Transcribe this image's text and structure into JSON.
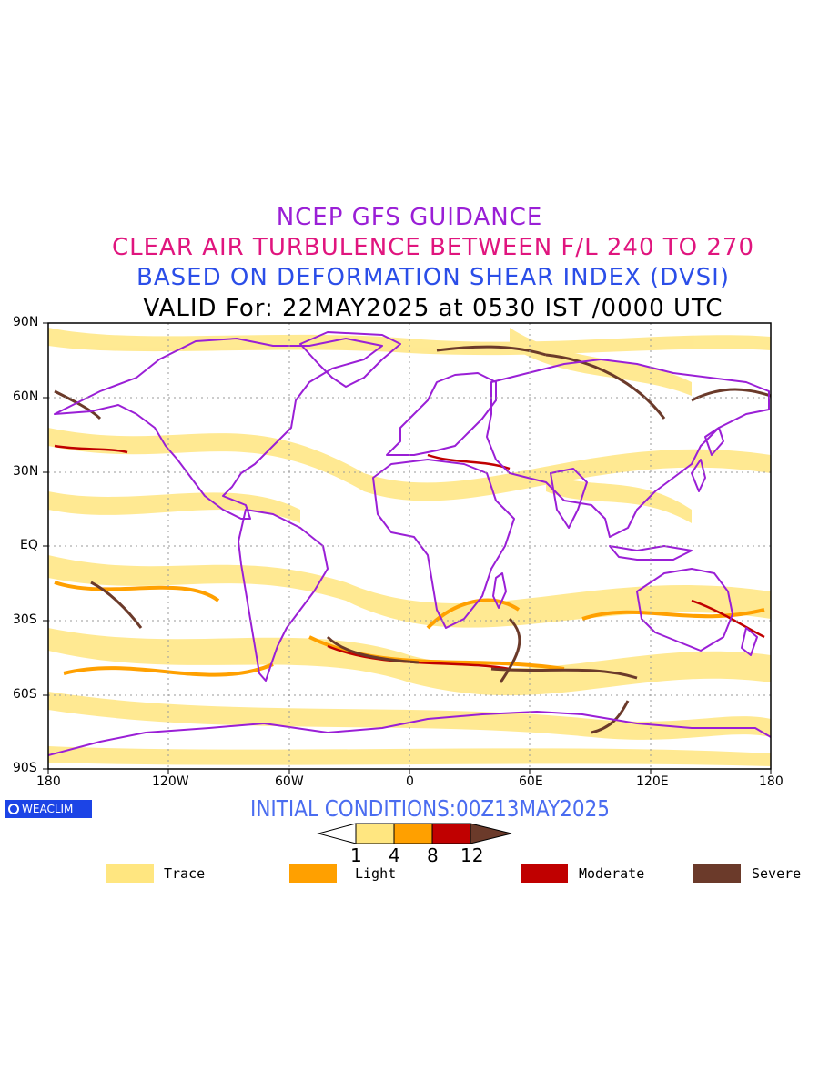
{
  "titles": {
    "line1": "NCEP GFS GUIDANCE",
    "line2": "CLEAR AIR TURBULENCE BETWEEN F/L 240 TO 270",
    "line3": "BASED ON DEFORMATION SHEAR INDEX (DVSI)",
    "line4": "VALID For: 22MAY2025 at 0530 IST /0000 UTC"
  },
  "axes": {
    "lat_labels": [
      "90N",
      "60N",
      "30N",
      "EQ",
      "30S",
      "60S",
      "90S"
    ],
    "lon_labels": [
      "180",
      "120W",
      "60W",
      "0",
      "60E",
      "120E",
      "180"
    ]
  },
  "logo": {
    "text": "WEACLIM"
  },
  "initial_conditions": "INITIAL CONDITIONS:00Z13MAY2025",
  "colorbar": {
    "ticks": [
      "1",
      "4",
      "8",
      "12"
    ],
    "colors": [
      "#ffe680",
      "#ffa000",
      "#c00000",
      "#6b3a2a"
    ]
  },
  "legend": [
    {
      "label": "Trace",
      "color": "#ffe680"
    },
    {
      "label": "Light",
      "color": "#ffa000"
    },
    {
      "label": "Moderate",
      "color": "#c00000"
    },
    {
      "label": "Severe",
      "color": "#6b3a2a"
    }
  ],
  "colors": {
    "coastline": "#9a1fd6",
    "gridline": "#9a9a9a"
  }
}
